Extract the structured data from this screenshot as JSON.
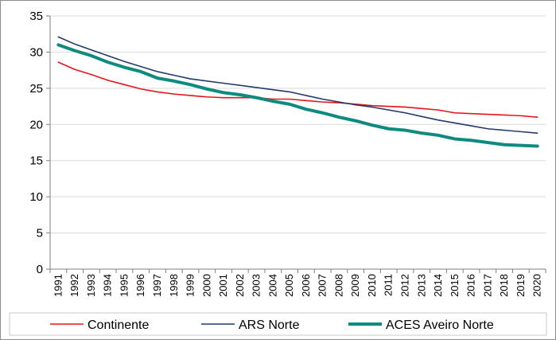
{
  "chart_data": {
    "type": "line",
    "title": "",
    "xlabel": "",
    "ylabel": "",
    "ylim": [
      0,
      35
    ],
    "yticks": [
      0,
      5,
      10,
      15,
      20,
      25,
      30,
      35
    ],
    "grid": true,
    "legend_position": "bottom",
    "categories": [
      "1991",
      "1992",
      "1993",
      "1994",
      "1995",
      "1996",
      "1997",
      "1998",
      "1999",
      "2000",
      "2001",
      "2002",
      "2003",
      "2004",
      "2005",
      "2006",
      "2007",
      "2008",
      "2009",
      "2010",
      "2011",
      "2012",
      "2013",
      "2014",
      "2015",
      "2016",
      "2017",
      "2018",
      "2019",
      "2020"
    ],
    "series": [
      {
        "name": "Continente",
        "color": "#e8131a",
        "line_width": "thin",
        "values": [
          28.6,
          27.6,
          26.9,
          26.1,
          25.5,
          24.9,
          24.5,
          24.2,
          24.0,
          23.8,
          23.7,
          23.7,
          23.7,
          23.5,
          23.5,
          23.3,
          23.1,
          23.0,
          22.8,
          22.6,
          22.5,
          22.4,
          22.2,
          22.0,
          21.6,
          21.5,
          21.4,
          21.3,
          21.2,
          21.0
        ]
      },
      {
        "name": "ARS Norte",
        "color": "#243a6b",
        "line_width": "thin",
        "values": [
          32.1,
          31.1,
          30.3,
          29.5,
          28.7,
          28.0,
          27.3,
          26.8,
          26.3,
          26.0,
          25.7,
          25.4,
          25.1,
          24.8,
          24.5,
          24.0,
          23.5,
          23.1,
          22.7,
          22.4,
          22.0,
          21.6,
          21.1,
          20.6,
          20.2,
          19.8,
          19.4,
          19.2,
          19.0,
          18.8
        ]
      },
      {
        "name": "ACES Aveiro Norte",
        "color": "#0e8a7e",
        "line_width": "thick",
        "values": [
          31.0,
          30.2,
          29.5,
          28.6,
          27.9,
          27.3,
          26.4,
          26.0,
          25.5,
          24.9,
          24.4,
          24.1,
          23.7,
          23.2,
          22.8,
          22.1,
          21.6,
          21.0,
          20.5,
          19.9,
          19.4,
          19.2,
          18.8,
          18.5,
          18.0,
          17.8,
          17.5,
          17.2,
          17.1,
          17.0
        ]
      }
    ]
  }
}
